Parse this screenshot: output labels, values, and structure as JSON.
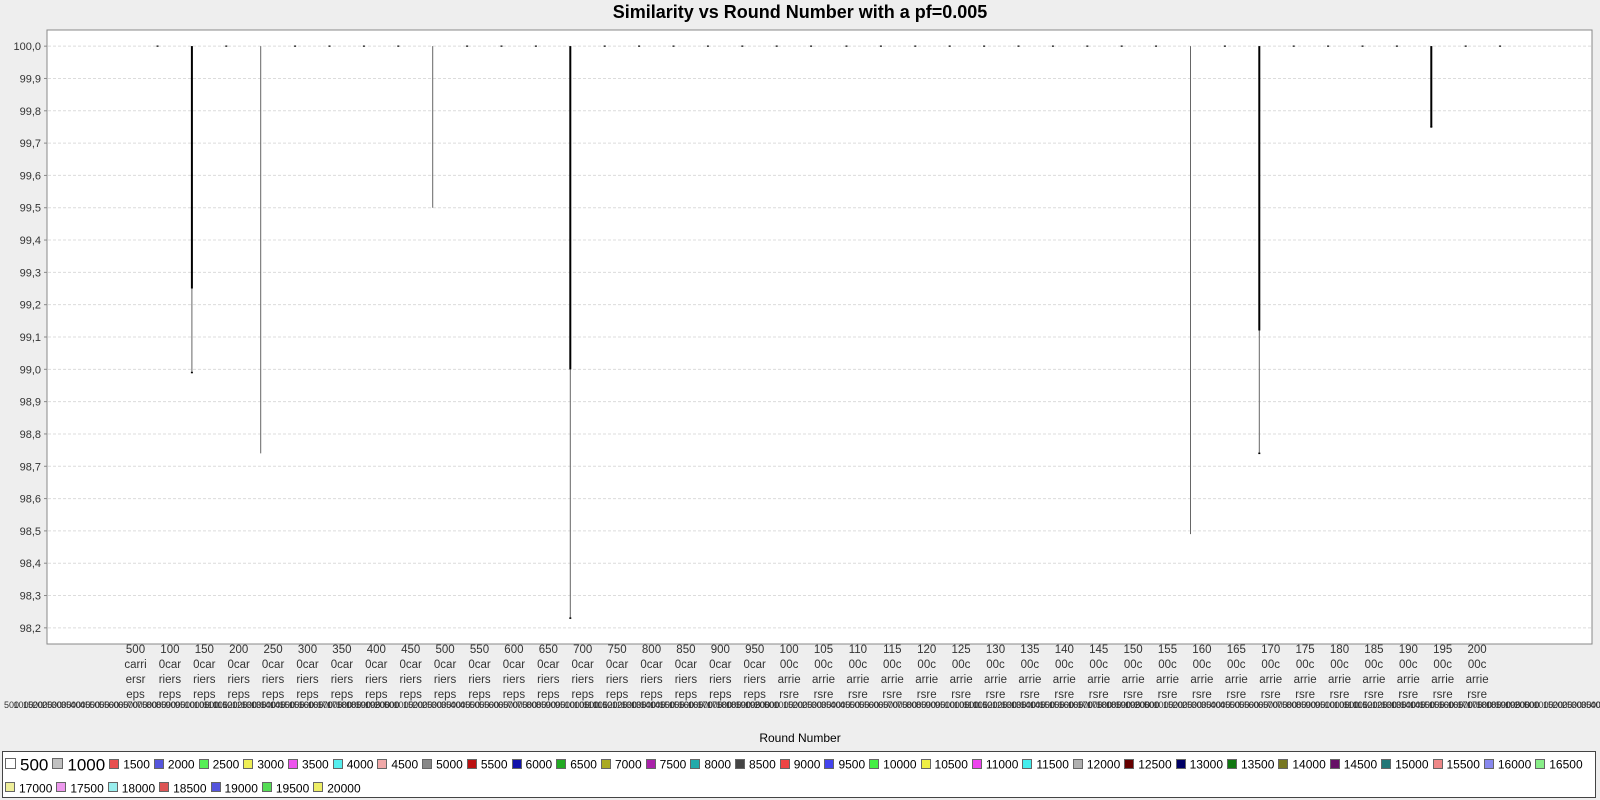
{
  "chart_data": {
    "type": "box",
    "title": "Similarity vs Round Number with a pf=0.005",
    "xlabel": "Round Number",
    "ylabel": "",
    "ylim": [
      98.15,
      100.05
    ],
    "yticks": [
      "98,2",
      "98,3",
      "98,4",
      "98,5",
      "98,6",
      "98,7",
      "98,8",
      "98,9",
      "99,0",
      "99,1",
      "99,2",
      "99,3",
      "99,4",
      "99,5",
      "99,6",
      "99,7",
      "99,8",
      "99,9",
      "100,0"
    ],
    "ytick_values": [
      98.2,
      98.3,
      98.4,
      98.5,
      98.6,
      98.7,
      98.8,
      98.9,
      99.0,
      99.1,
      99.2,
      99.3,
      99.4,
      99.5,
      99.6,
      99.7,
      99.8,
      99.9,
      100.0
    ],
    "grid": true,
    "legend_position": "bottom",
    "categories": [
      {
        "label": [
          "500",
          "carri",
          "ersr",
          "eps"
        ]
      },
      {
        "label": [
          "100",
          "0car",
          "riers",
          "reps"
        ]
      },
      {
        "label": [
          "150",
          "0car",
          "riers",
          "reps"
        ]
      },
      {
        "label": [
          "200",
          "0car",
          "riers",
          "reps"
        ]
      },
      {
        "label": [
          "250",
          "0car",
          "riers",
          "reps"
        ]
      },
      {
        "label": [
          "300",
          "0car",
          "riers",
          "reps"
        ]
      },
      {
        "label": [
          "350",
          "0car",
          "riers",
          "reps"
        ]
      },
      {
        "label": [
          "400",
          "0car",
          "riers",
          "reps"
        ]
      },
      {
        "label": [
          "450",
          "0car",
          "riers",
          "reps"
        ]
      },
      {
        "label": [
          "500",
          "0car",
          "riers",
          "reps"
        ]
      },
      {
        "label": [
          "550",
          "0car",
          "riers",
          "reps"
        ]
      },
      {
        "label": [
          "600",
          "0car",
          "riers",
          "reps"
        ]
      },
      {
        "label": [
          "650",
          "0car",
          "riers",
          "reps"
        ]
      },
      {
        "label": [
          "700",
          "0car",
          "riers",
          "reps"
        ]
      },
      {
        "label": [
          "750",
          "0car",
          "riers",
          "reps"
        ]
      },
      {
        "label": [
          "800",
          "0car",
          "riers",
          "reps"
        ]
      },
      {
        "label": [
          "850",
          "0car",
          "riers",
          "reps"
        ]
      },
      {
        "label": [
          "900",
          "0car",
          "riers",
          "reps"
        ]
      },
      {
        "label": [
          "950",
          "0car",
          "riers",
          "reps"
        ]
      },
      {
        "label": [
          "100",
          "00c",
          "arrie",
          "rsre"
        ]
      },
      {
        "label": [
          "105",
          "00c",
          "arrie",
          "rsre"
        ]
      },
      {
        "label": [
          "110",
          "00c",
          "arrie",
          "rsre"
        ]
      },
      {
        "label": [
          "115",
          "00c",
          "arrie",
          "rsre"
        ]
      },
      {
        "label": [
          "120",
          "00c",
          "arrie",
          "rsre"
        ]
      },
      {
        "label": [
          "125",
          "00c",
          "arrie",
          "rsre"
        ]
      },
      {
        "label": [
          "130",
          "00c",
          "arrie",
          "rsre"
        ]
      },
      {
        "label": [
          "135",
          "00c",
          "arrie",
          "rsre"
        ]
      },
      {
        "label": [
          "140",
          "00c",
          "arrie",
          "rsre"
        ]
      },
      {
        "label": [
          "145",
          "00c",
          "arrie",
          "rsre"
        ]
      },
      {
        "label": [
          "150",
          "00c",
          "arrie",
          "rsre"
        ]
      },
      {
        "label": [
          "155",
          "00c",
          "arrie",
          "rsre"
        ]
      },
      {
        "label": [
          "160",
          "00c",
          "arrie",
          "rsre"
        ]
      },
      {
        "label": [
          "165",
          "00c",
          "arrie",
          "rsre"
        ]
      },
      {
        "label": [
          "170",
          "00c",
          "arrie",
          "rsre"
        ]
      },
      {
        "label": [
          "175",
          "00c",
          "arrie",
          "rsre"
        ]
      },
      {
        "label": [
          "180",
          "00c",
          "arrie",
          "rsre"
        ]
      },
      {
        "label": [
          "185",
          "00c",
          "arrie",
          "rsre"
        ]
      },
      {
        "label": [
          "190",
          "00c",
          "arrie",
          "rsre"
        ]
      },
      {
        "label": [
          "195",
          "00c",
          "arrie",
          "rsre"
        ]
      },
      {
        "label": [
          "200",
          "00c",
          "arrie",
          "rsre"
        ]
      }
    ],
    "series": [
      {
        "name": "500",
        "color": "#ffffff"
      },
      {
        "name": "1000",
        "color": "#c0c0c0"
      },
      {
        "name": "1500",
        "color": "#e85050"
      },
      {
        "name": "2000",
        "color": "#5555dd"
      },
      {
        "name": "2500",
        "color": "#55ee55"
      },
      {
        "name": "3000",
        "color": "#eeee55"
      },
      {
        "name": "3500",
        "color": "#ee55ee"
      },
      {
        "name": "4000",
        "color": "#55eeee"
      },
      {
        "name": "4500",
        "color": "#f0a8a8"
      },
      {
        "name": "5000",
        "color": "#888888"
      },
      {
        "name": "5500",
        "color": "#bb1111"
      },
      {
        "name": "6000",
        "color": "#1111aa"
      },
      {
        "name": "6500",
        "color": "#22aa22"
      },
      {
        "name": "7000",
        "color": "#aaaa22"
      },
      {
        "name": "7500",
        "color": "#aa22aa"
      },
      {
        "name": "8000",
        "color": "#22aaaa"
      },
      {
        "name": "8500",
        "color": "#444444"
      },
      {
        "name": "9000",
        "color": "#ee4444"
      },
      {
        "name": "9500",
        "color": "#4444ee"
      },
      {
        "name": "10000",
        "color": "#44ee44"
      },
      {
        "name": "10500",
        "color": "#eeee44"
      },
      {
        "name": "11000",
        "color": "#ee44ee"
      },
      {
        "name": "11500",
        "color": "#44eeee"
      },
      {
        "name": "12000",
        "color": "#b0b0b0"
      },
      {
        "name": "12500",
        "color": "#660000"
      },
      {
        "name": "13000",
        "color": "#000066"
      },
      {
        "name": "13500",
        "color": "#117711"
      },
      {
        "name": "14000",
        "color": "#777722"
      },
      {
        "name": "14500",
        "color": "#661166"
      },
      {
        "name": "15000",
        "color": "#227777"
      },
      {
        "name": "15500",
        "color": "#ee8888"
      },
      {
        "name": "16000",
        "color": "#8888ee"
      },
      {
        "name": "16500",
        "color": "#88ee88"
      },
      {
        "name": "17000",
        "color": "#eeee99"
      },
      {
        "name": "17500",
        "color": "#ee99ee"
      },
      {
        "name": "18000",
        "color": "#99eeee"
      },
      {
        "name": "18500",
        "color": "#dd5555"
      },
      {
        "name": "19000",
        "color": "#5555dd"
      },
      {
        "name": "19500",
        "color": "#55dd55"
      },
      {
        "name": "20000",
        "color": "#eeee66"
      }
    ],
    "boxes": [
      {
        "category": 0,
        "min": 100.0,
        "max": 100.0
      },
      {
        "category": 1,
        "min": 98.99,
        "max": 100.0,
        "q1": 99.25,
        "q3": 100.0,
        "heavy": true
      },
      {
        "category": 2,
        "min": 100.0,
        "max": 100.0
      },
      {
        "category": 3,
        "min": 98.74,
        "max": 100.0
      },
      {
        "category": 4,
        "min": 100.0,
        "max": 100.0
      },
      {
        "category": 5,
        "min": 100.0,
        "max": 100.0
      },
      {
        "category": 6,
        "min": 100.0,
        "max": 100.0
      },
      {
        "category": 7,
        "min": 100.0,
        "max": 100.0
      },
      {
        "category": 8,
        "min": 99.5,
        "max": 100.0
      },
      {
        "category": 9,
        "min": 100.0,
        "max": 100.0
      },
      {
        "category": 10,
        "min": 100.0,
        "max": 100.0
      },
      {
        "category": 11,
        "min": 100.0,
        "max": 100.0
      },
      {
        "category": 12,
        "min": 98.23,
        "max": 100.0,
        "q1": 99.0,
        "q3": 100.0,
        "heavy": true
      },
      {
        "category": 13,
        "min": 100.0,
        "max": 100.0
      },
      {
        "category": 14,
        "min": 100.0,
        "max": 100.0
      },
      {
        "category": 15,
        "min": 100.0,
        "max": 100.0
      },
      {
        "category": 16,
        "min": 100.0,
        "max": 100.0
      },
      {
        "category": 17,
        "min": 100.0,
        "max": 100.0
      },
      {
        "category": 18,
        "min": 100.0,
        "max": 100.0
      },
      {
        "category": 19,
        "min": 100.0,
        "max": 100.0
      },
      {
        "category": 20,
        "min": 100.0,
        "max": 100.0
      },
      {
        "category": 21,
        "min": 100.0,
        "max": 100.0
      },
      {
        "category": 22,
        "min": 100.0,
        "max": 100.0
      },
      {
        "category": 23,
        "min": 100.0,
        "max": 100.0
      },
      {
        "category": 24,
        "min": 100.0,
        "max": 100.0
      },
      {
        "category": 25,
        "min": 100.0,
        "max": 100.0
      },
      {
        "category": 26,
        "min": 100.0,
        "max": 100.0
      },
      {
        "category": 27,
        "min": 100.0,
        "max": 100.0
      },
      {
        "category": 28,
        "min": 100.0,
        "max": 100.0
      },
      {
        "category": 29,
        "min": 100.0,
        "max": 100.0
      },
      {
        "category": 30,
        "min": 98.49,
        "max": 100.0
      },
      {
        "category": 31,
        "min": 100.0,
        "max": 100.0
      },
      {
        "category": 32,
        "min": 98.74,
        "max": 100.0,
        "q1": 99.12,
        "q3": 100.0,
        "heavy": true
      },
      {
        "category": 33,
        "min": 100.0,
        "max": 100.0
      },
      {
        "category": 34,
        "min": 100.0,
        "max": 100.0
      },
      {
        "category": 35,
        "min": 100.0,
        "max": 100.0
      },
      {
        "category": 36,
        "min": 100.0,
        "max": 100.0
      },
      {
        "category": 37,
        "min": 99.75,
        "max": 100.0,
        "q1": 99.75,
        "q3": 100.0,
        "heavy": true
      },
      {
        "category": 38,
        "min": 100.0,
        "max": 100.0
      },
      {
        "category": 39,
        "min": 100.0,
        "max": 100.0
      }
    ]
  }
}
